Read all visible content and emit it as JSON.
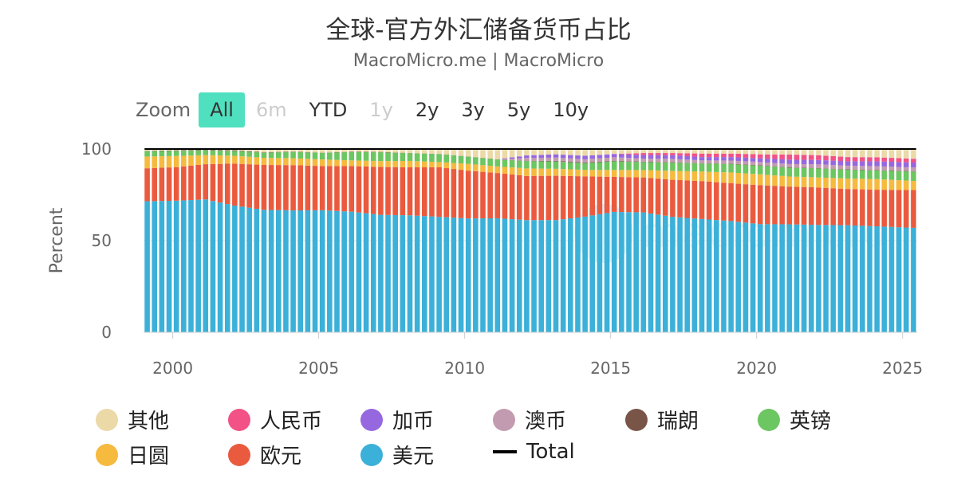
{
  "title": "全球-官方外汇储备货币占比",
  "subtitle": "MacroMicro.me | MacroMicro",
  "zoom": {
    "label": "Zoom",
    "buttons": [
      {
        "label": "All",
        "state": "active"
      },
      {
        "label": "6m",
        "state": "disabled"
      },
      {
        "label": "YTD",
        "state": "normal"
      },
      {
        "label": "1y",
        "state": "disabled"
      },
      {
        "label": "2y",
        "state": "normal"
      },
      {
        "label": "3y",
        "state": "normal"
      },
      {
        "label": "5y",
        "state": "normal"
      },
      {
        "label": "10y",
        "state": "normal"
      }
    ]
  },
  "watermark": "macromicro",
  "chart_data": {
    "type": "bar",
    "stacked": true,
    "title": "全球-官方外汇储备货币占比",
    "ylabel": "Percent",
    "ylim": [
      0,
      100
    ],
    "yticks": [
      0,
      50,
      100
    ],
    "xlim": [
      1999.0,
      2025.5
    ],
    "xticks": [
      2000,
      2005,
      2010,
      2015,
      2020,
      2025
    ],
    "interval": "quarterly",
    "anchor_years": [
      1999,
      2000,
      2001,
      2002,
      2003,
      2004,
      2005,
      2006,
      2007,
      2008,
      2009,
      2010,
      2011,
      2012,
      2013,
      2014,
      2015,
      2016,
      2017,
      2018,
      2019,
      2020,
      2021,
      2022,
      2023,
      2024,
      2025.25
    ],
    "series": [
      {
        "name": "美元",
        "color": "#3bb0d8",
        "values": [
          71.5,
          71.8,
          72.5,
          71.2,
          66.8,
          66.5,
          66.6,
          65.8,
          64.1,
          63.8,
          63.0,
          62.1,
          62.2,
          61.2,
          61.2,
          63.1,
          65.7,
          65.4,
          63.0,
          61.8,
          60.7,
          59.0,
          58.9,
          58.6,
          58.4,
          57.8,
          57.0
        ]
      },
      {
        "name": "欧元",
        "color": "#ea5a3e",
        "values": [
          18.0,
          18.3,
          19.2,
          23.6,
          24.5,
          24.7,
          24.1,
          24.9,
          26.1,
          26.2,
          27.0,
          26.1,
          24.7,
          24.1,
          24.2,
          22.0,
          19.1,
          19.1,
          20.2,
          20.7,
          20.6,
          21.3,
          20.6,
          20.4,
          19.8,
          20.0,
          20.6
        ]
      },
      {
        "name": "日圆",
        "color": "#f5ba3e",
        "values": [
          6.4,
          6.1,
          5.0,
          4.4,
          3.9,
          3.8,
          3.6,
          3.1,
          3.2,
          3.5,
          2.9,
          3.7,
          3.6,
          4.1,
          3.8,
          3.5,
          3.8,
          4.0,
          4.9,
          5.2,
          5.9,
          5.9,
          5.5,
          5.5,
          5.7,
          5.8,
          5.0
        ]
      },
      {
        "name": "英镑",
        "color": "#6cc661",
        "values": [
          2.9,
          2.8,
          2.7,
          2.7,
          2.8,
          3.4,
          3.6,
          4.5,
          4.8,
          4.2,
          4.3,
          3.9,
          3.8,
          4.0,
          4.0,
          3.7,
          4.7,
          4.4,
          4.5,
          4.4,
          4.6,
          4.7,
          4.8,
          4.9,
          4.8,
          4.7,
          5.1
        ]
      },
      {
        "name": "瑞朗",
        "color": "#795548",
        "values": [
          0.2,
          0.3,
          0.3,
          0.4,
          0.2,
          0.2,
          0.1,
          0.2,
          0.2,
          0.1,
          0.1,
          0.1,
          0.1,
          0.2,
          0.3,
          0.3,
          0.3,
          0.2,
          0.2,
          0.1,
          0.2,
          0.2,
          0.2,
          0.2,
          0.2,
          0.2,
          0.2
        ]
      },
      {
        "name": "澳币",
        "color": "#c39bb1",
        "values": [
          0,
          0,
          0,
          0,
          0,
          0,
          0,
          0,
          0,
          0,
          0,
          0,
          0,
          1.5,
          1.8,
          1.8,
          1.9,
          1.7,
          1.8,
          1.6,
          1.7,
          1.8,
          1.8,
          2.0,
          2.0,
          2.1,
          2.0
        ]
      },
      {
        "name": "加币",
        "color": "#9668df",
        "values": [
          0,
          0,
          0,
          0,
          0,
          0,
          0,
          0,
          0,
          0,
          0,
          0,
          0,
          1.4,
          1.8,
          1.9,
          1.8,
          1.9,
          2.0,
          1.8,
          1.9,
          2.0,
          2.4,
          2.4,
          2.4,
          2.7,
          2.7
        ]
      },
      {
        "name": "人民币",
        "color": "#f25286",
        "values": [
          0,
          0,
          0,
          0,
          0,
          0,
          0,
          0,
          0,
          0,
          0,
          0,
          0,
          0,
          0,
          0,
          0,
          1.1,
          1.2,
          1.9,
          1.9,
          2.2,
          2.8,
          2.6,
          2.3,
          2.2,
          2.1
        ]
      },
      {
        "name": "其他",
        "color": "#ebd9a8",
        "values": [
          1.0,
          0.7,
          0.3,
          0.7,
          1.8,
          1.4,
          2.0,
          1.5,
          1.6,
          2.2,
          2.7,
          4.1,
          5.6,
          3.5,
          2.9,
          3.7,
          2.7,
          2.2,
          2.2,
          2.5,
          2.5,
          2.9,
          3.0,
          3.4,
          4.4,
          4.5,
          5.3
        ]
      }
    ],
    "total": {
      "name": "Total",
      "color": "#000000",
      "value": 100
    },
    "legend": {
      "position": "bottom",
      "items": [
        {
          "name": "其他",
          "color": "#ebd9a8",
          "symbol": "dot"
        },
        {
          "name": "人民币",
          "color": "#f25286",
          "symbol": "dot"
        },
        {
          "name": "加币",
          "color": "#9668df",
          "symbol": "dot"
        },
        {
          "name": "澳币",
          "color": "#c39bb1",
          "symbol": "dot"
        },
        {
          "name": "瑞朗",
          "color": "#795548",
          "symbol": "dot"
        },
        {
          "name": "英镑",
          "color": "#6cc661",
          "symbol": "dot"
        },
        {
          "name": "日圆",
          "color": "#f5ba3e",
          "symbol": "dot"
        },
        {
          "name": "欧元",
          "color": "#ea5a3e",
          "symbol": "dot"
        },
        {
          "name": "美元",
          "color": "#3bb0d8",
          "symbol": "dot"
        },
        {
          "name": "Total",
          "color": "#000000",
          "symbol": "line"
        }
      ]
    }
  }
}
